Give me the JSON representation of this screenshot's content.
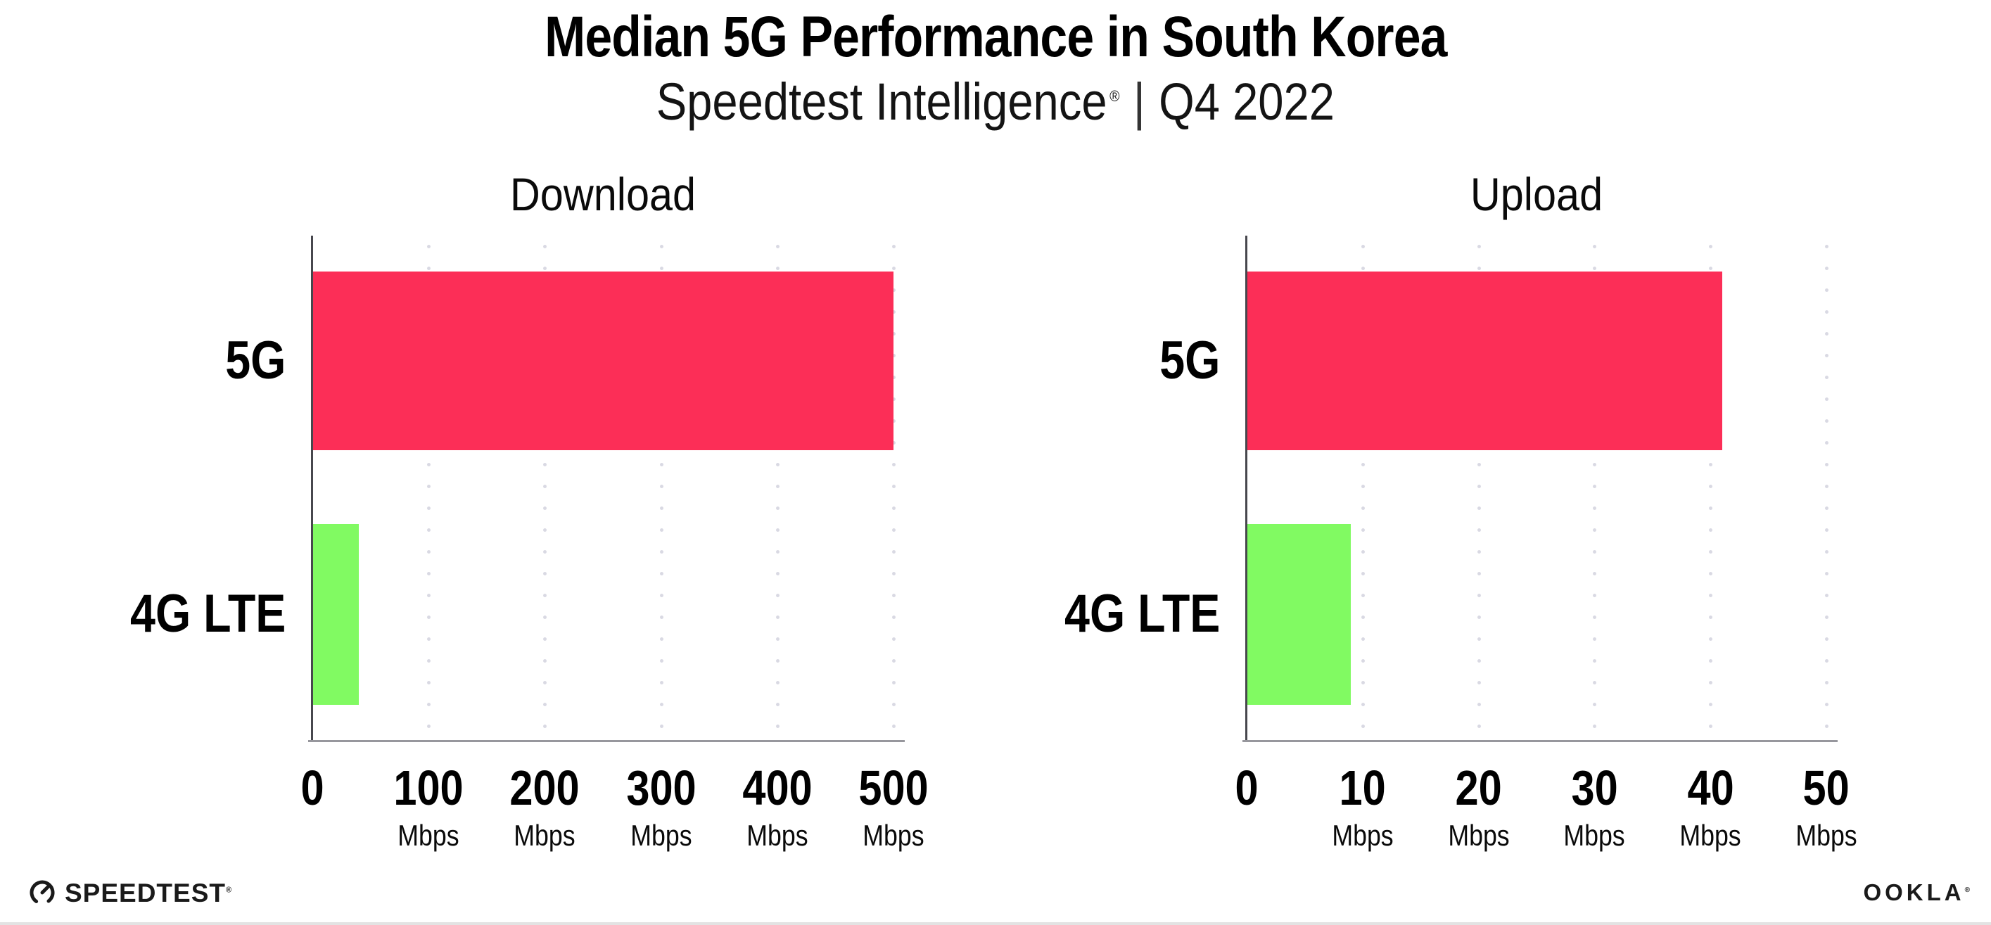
{
  "title": "Median 5G Performance in South Korea",
  "subtitle": {
    "brand": "Speedtest Intelligence",
    "registered_mark": "®",
    "separator": "|",
    "period": "Q4 2022"
  },
  "unit": "Mbps",
  "colors": {
    "bar_5g": "#fc2e57",
    "bar_4g_lte": "#81fa62",
    "grid_dot": "#d9d9e3",
    "x_axis_line": "#97979d",
    "y_axis_line": "#47474d"
  },
  "chart_data": [
    {
      "type": "bar",
      "orientation": "horizontal",
      "title": "Download",
      "categories": [
        "5G",
        "4G LTE"
      ],
      "values": [
        500,
        40
      ],
      "unit": "Mbps",
      "xlim": [
        0,
        500
      ],
      "xticks": [
        "0",
        "100",
        "200",
        "300",
        "400",
        "500"
      ],
      "grid": "dotted-vertical",
      "legend": "none"
    },
    {
      "type": "bar",
      "orientation": "horizontal",
      "title": "Upload",
      "categories": [
        "5G",
        "4G LTE"
      ],
      "values": [
        41,
        9
      ],
      "unit": "Mbps",
      "xlim": [
        0,
        50
      ],
      "xticks": [
        "0",
        "10",
        "20",
        "30",
        "40",
        "50"
      ],
      "grid": "dotted-vertical",
      "legend": "none"
    }
  ],
  "footer": {
    "speedtest_label": "SPEEDTEST",
    "speedtest_mark": "®",
    "speedtest_icon": "gauge-icon",
    "ookla_label": "OOKLA",
    "ookla_mark": "®"
  }
}
